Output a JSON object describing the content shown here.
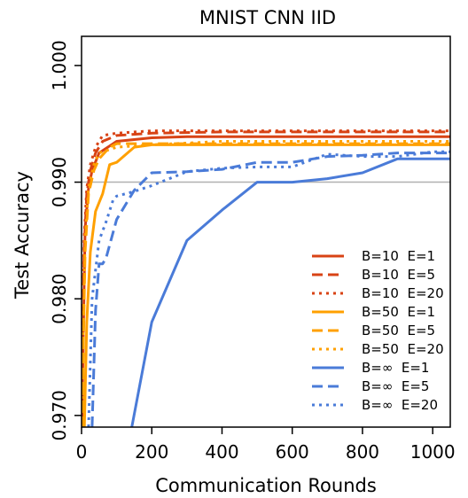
{
  "chart_data": {
    "type": "line",
    "title": "MNIST CNN IID",
    "xlabel": "Communication Rounds",
    "ylabel": "Test Accuracy",
    "xlim": [
      0,
      1050
    ],
    "ylim": [
      0.969,
      1.0025
    ],
    "x_ticks": [
      0,
      200,
      400,
      600,
      800,
      1000
    ],
    "x_tick_labels": [
      "0",
      "200",
      "400",
      "600",
      "800",
      "1000"
    ],
    "y_ticks": [
      0.97,
      0.98,
      0.99,
      1.0
    ],
    "y_tick_labels": [
      "0.970",
      "0.980",
      "0.990",
      "1.000"
    ],
    "reference_line": 0.99,
    "legend_position": "bottom-right",
    "colors": {
      "B10": "#d84315",
      "B50": "#ffa000",
      "Binf": "#4a7bd8",
      "reference": "#b0b0b0"
    },
    "series": [
      {
        "name": "B=10  E=1",
        "color": "#d84315",
        "dash": "solid",
        "x": [
          1,
          5,
          10,
          20,
          30,
          50,
          100,
          200,
          300,
          500,
          700,
          1000,
          1050
        ],
        "y": [
          0.969,
          0.977,
          0.986,
          0.9895,
          0.991,
          0.9925,
          0.9935,
          0.9938,
          0.9939,
          0.9939,
          0.9939,
          0.9939,
          0.9939
        ]
      },
      {
        "name": "B=10  E=5",
        "color": "#d84315",
        "dash": "dash",
        "x": [
          1,
          3,
          7,
          15,
          25,
          40,
          60,
          100,
          200,
          400,
          700,
          1000,
          1050
        ],
        "y": [
          0.969,
          0.975,
          0.984,
          0.989,
          0.991,
          0.9925,
          0.9935,
          0.994,
          0.9942,
          0.9943,
          0.9943,
          0.9943,
          0.9943
        ]
      },
      {
        "name": "B=10  E=20",
        "color": "#d84315",
        "dash": "dot",
        "x": [
          1,
          3,
          7,
          15,
          25,
          40,
          60,
          100,
          200,
          400,
          700,
          1000,
          1050
        ],
        "y": [
          0.969,
          0.976,
          0.985,
          0.9895,
          0.9915,
          0.993,
          0.994,
          0.9942,
          0.9944,
          0.9944,
          0.9944,
          0.9944,
          0.9944
        ]
      },
      {
        "name": "B=50  E=1",
        "color": "#ffa000",
        "dash": "solid",
        "x": [
          8,
          15,
          25,
          40,
          60,
          80,
          100,
          150,
          200,
          400,
          700,
          1000,
          1050
        ],
        "y": [
          0.969,
          0.978,
          0.984,
          0.9875,
          0.989,
          0.9915,
          0.9917,
          0.993,
          0.9932,
          0.9932,
          0.9932,
          0.9932,
          0.9932
        ]
      },
      {
        "name": "B=50  E=5",
        "color": "#ffa000",
        "dash": "dash",
        "x": [
          2,
          5,
          10,
          20,
          35,
          50,
          80,
          100,
          200,
          400,
          700,
          1000,
          1050
        ],
        "y": [
          0.969,
          0.976,
          0.984,
          0.989,
          0.991,
          0.992,
          0.993,
          0.9933,
          0.9933,
          0.9933,
          0.9933,
          0.9933,
          0.9933
        ]
      },
      {
        "name": "B=50  E=20",
        "color": "#ffa000",
        "dash": "dot",
        "x": [
          2,
          5,
          10,
          20,
          35,
          50,
          80,
          100,
          200,
          400,
          700,
          1000,
          1050
        ],
        "y": [
          0.969,
          0.977,
          0.985,
          0.9895,
          0.9915,
          0.9925,
          0.9928,
          0.993,
          0.9932,
          0.9935,
          0.9935,
          0.9935,
          0.9935
        ]
      },
      {
        "name": "B=∞  E=1",
        "color": "#4a7bd8",
        "dash": "solid",
        "x": [
          143,
          200,
          300,
          400,
          500,
          600,
          700,
          800,
          900,
          1000,
          1050
        ],
        "y": [
          0.969,
          0.978,
          0.985,
          0.9876,
          0.99,
          0.99,
          0.9903,
          0.9908,
          0.992,
          0.992,
          0.992
        ]
      },
      {
        "name": "B=∞  E=5",
        "color": "#4a7bd8",
        "dash": "dash",
        "x": [
          30,
          40,
          50,
          60,
          70,
          100,
          150,
          200,
          300,
          400,
          500,
          600,
          700,
          800,
          900,
          1000,
          1050
        ],
        "y": [
          0.969,
          0.979,
          0.983,
          0.983,
          0.9835,
          0.9868,
          0.9893,
          0.9908,
          0.9909,
          0.9911,
          0.9917,
          0.9917,
          0.9922,
          0.9923,
          0.9925,
          0.9925,
          0.9925
        ]
      },
      {
        "name": "B=∞  E=20",
        "color": "#4a7bd8",
        "dash": "dot",
        "x": [
          20,
          30,
          50,
          70,
          90,
          100,
          150,
          200,
          300,
          400,
          500,
          600,
          700,
          800,
          900,
          1000,
          1050
        ],
        "y": [
          0.969,
          0.98,
          0.985,
          0.9866,
          0.9885,
          0.9888,
          0.9892,
          0.9897,
          0.9909,
          0.9912,
          0.9913,
          0.9913,
          0.9924,
          0.9922,
          0.9922,
          0.9926,
          0.9926
        ]
      }
    ]
  }
}
